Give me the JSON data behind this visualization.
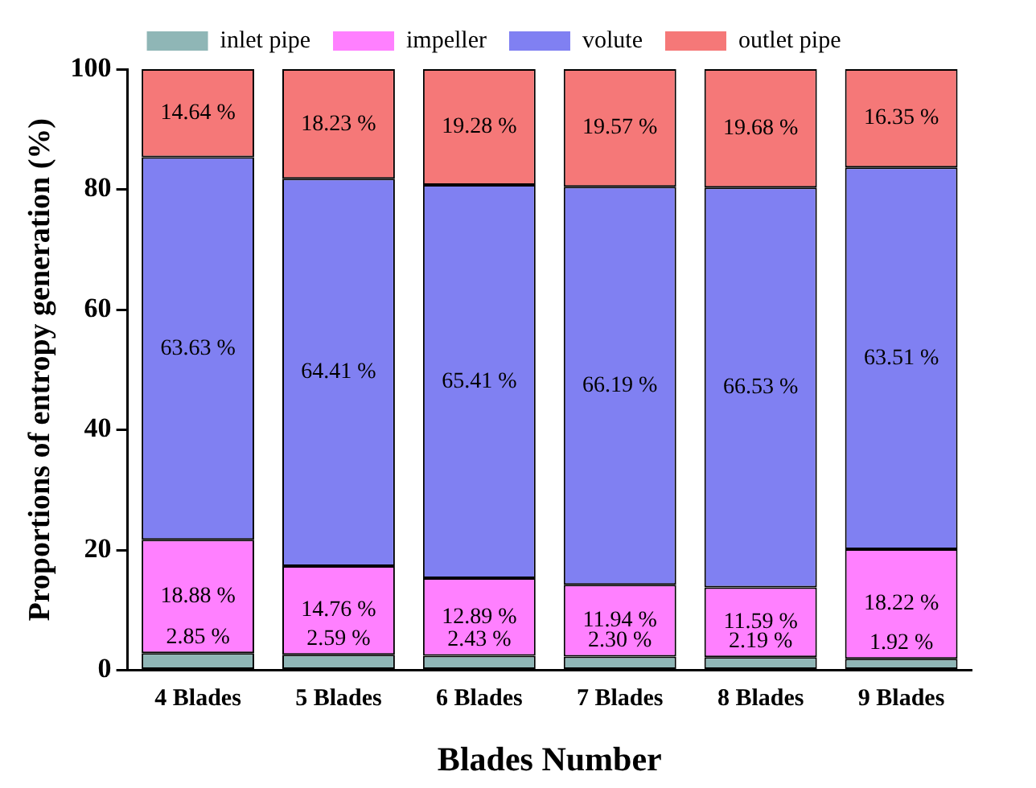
{
  "chart_data": {
    "type": "bar",
    "stacked": true,
    "xlabel": "Blades Number",
    "ylabel": "Proportions of entropy generation (%)",
    "categories": [
      "4 Blades",
      "5 Blades",
      "6 Blades",
      "7 Blades",
      "8 Blades",
      "9 Blades"
    ],
    "series": [
      {
        "name": "inlet pipe",
        "color": "#8fb6b6",
        "values": [
          2.85,
          2.59,
          2.43,
          2.3,
          2.19,
          1.92
        ],
        "value_labels": [
          "2.85 %",
          "2.59 %",
          "2.43 %",
          "2.30 %",
          "2.19 %",
          "1.92 %"
        ]
      },
      {
        "name": "impeller",
        "color": "#ff80ff",
        "values": [
          18.88,
          14.76,
          12.89,
          11.94,
          11.59,
          18.22
        ],
        "value_labels": [
          "18.88 %",
          "14.76 %",
          "12.89 %",
          "11.94 %",
          "11.59 %",
          "18.22 %"
        ]
      },
      {
        "name": "volute",
        "color": "#8080f2",
        "values": [
          63.63,
          64.41,
          65.41,
          66.19,
          66.53,
          63.51
        ],
        "value_labels": [
          "63.63 %",
          "64.41 %",
          "65.41 %",
          "66.19 %",
          "66.53 %",
          "63.51 %"
        ]
      },
      {
        "name": "outlet pipe",
        "color": "#f57878",
        "values": [
          14.64,
          18.23,
          19.28,
          19.57,
          19.68,
          16.35
        ],
        "value_labels": [
          "14.64 %",
          "18.23 %",
          "19.28 %",
          "19.57 %",
          "19.68 %",
          "16.35 %"
        ]
      }
    ],
    "ylim": [
      0,
      100
    ],
    "yticks": [
      0,
      20,
      40,
      60,
      80,
      100
    ],
    "grid": false,
    "legend": "top"
  }
}
